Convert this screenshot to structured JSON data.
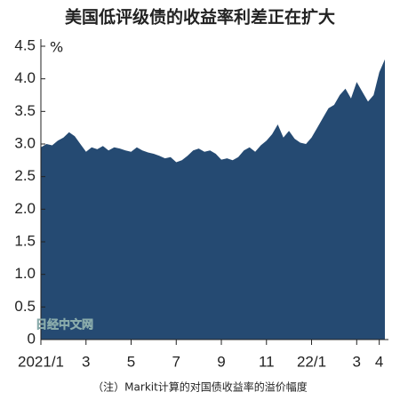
{
  "chart_data": {
    "type": "area",
    "title": "美国低评级债的收益率利差正在扩大",
    "unit": "%",
    "watermark": "日经中文网",
    "note": "（注）Markit计算的对国债收益率的溢价幅度",
    "color": "#254a72",
    "categories": [
      "2021/1",
      null,
      null,
      null,
      null,
      null,
      null,
      null,
      "3",
      null,
      null,
      null,
      null,
      null,
      null,
      null,
      "5",
      null,
      null,
      null,
      null,
      null,
      null,
      null,
      "7",
      null,
      null,
      null,
      null,
      null,
      null,
      null,
      "9",
      null,
      null,
      null,
      null,
      null,
      null,
      null,
      "11",
      null,
      null,
      null,
      null,
      null,
      null,
      null,
      "22/1",
      null,
      null,
      null,
      null,
      null,
      null,
      null,
      "3",
      null,
      null,
      null,
      "4",
      null
    ],
    "values": [
      2.95,
      3.0,
      2.98,
      3.05,
      3.1,
      3.18,
      3.12,
      3.0,
      2.88,
      2.95,
      2.92,
      2.97,
      2.9,
      2.95,
      2.93,
      2.9,
      2.88,
      2.95,
      2.9,
      2.87,
      2.85,
      2.82,
      2.78,
      2.8,
      2.72,
      2.75,
      2.82,
      2.9,
      2.93,
      2.88,
      2.9,
      2.85,
      2.76,
      2.78,
      2.75,
      2.8,
      2.9,
      2.95,
      2.88,
      2.98,
      3.05,
      3.15,
      3.3,
      3.1,
      3.2,
      3.08,
      3.02,
      3.0,
      3.1,
      3.25,
      3.4,
      3.55,
      3.6,
      3.75,
      3.85,
      3.7,
      3.95,
      3.8,
      3.65,
      3.75,
      4.1,
      4.3
    ],
    "ylim": [
      0,
      4.5
    ],
    "yticks": [
      0,
      0.5,
      {
        "value": 1,
        "label": "1.0"
      },
      1.5,
      {
        "value": 2,
        "label": "2.0"
      },
      2.5,
      {
        "value": 3,
        "label": "3.0"
      },
      3.5,
      {
        "value": 4,
        "label": "4.0"
      },
      4.5
    ]
  }
}
